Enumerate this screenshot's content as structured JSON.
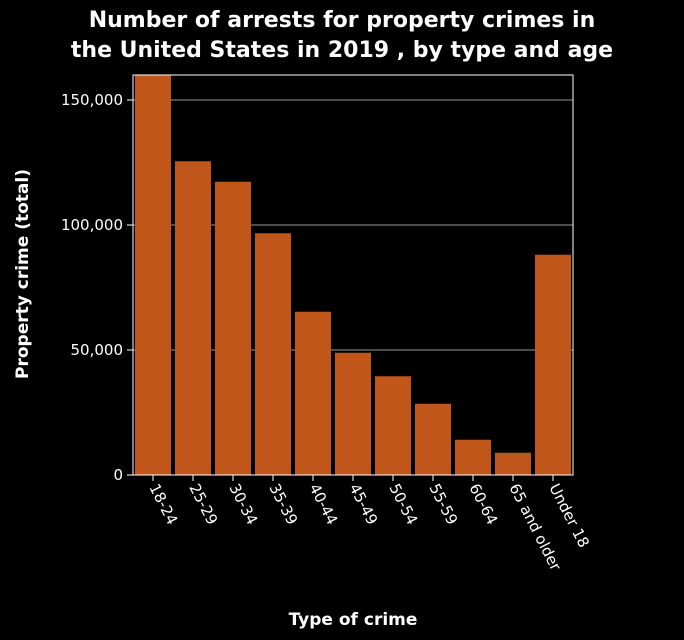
{
  "chart_data": {
    "type": "bar",
    "title_lines": [
      "Number of arrests for property crimes in",
      "the United States in 2019 , by type and age"
    ],
    "xlabel": "Type of crime",
    "ylabel": "Property crime (total)",
    "categories": [
      "18-24",
      "25-29",
      "30-34",
      "35-39",
      "40-44",
      "45-49",
      "50-54",
      "55-59",
      "60-64",
      "65 and older",
      "Under 18"
    ],
    "values": [
      160000,
      125500,
      117300,
      96700,
      65300,
      48900,
      39500,
      28500,
      14100,
      8900,
      88100
    ],
    "ylim": [
      0,
      160000
    ],
    "yticks": [
      0,
      50000,
      100000,
      150000
    ],
    "ytick_labels": [
      "0",
      "50,000",
      "100,000",
      "150,000"
    ],
    "grid": true,
    "bar_color": "#c0561a",
    "background": "#000000",
    "text_color": "#ffffff"
  }
}
